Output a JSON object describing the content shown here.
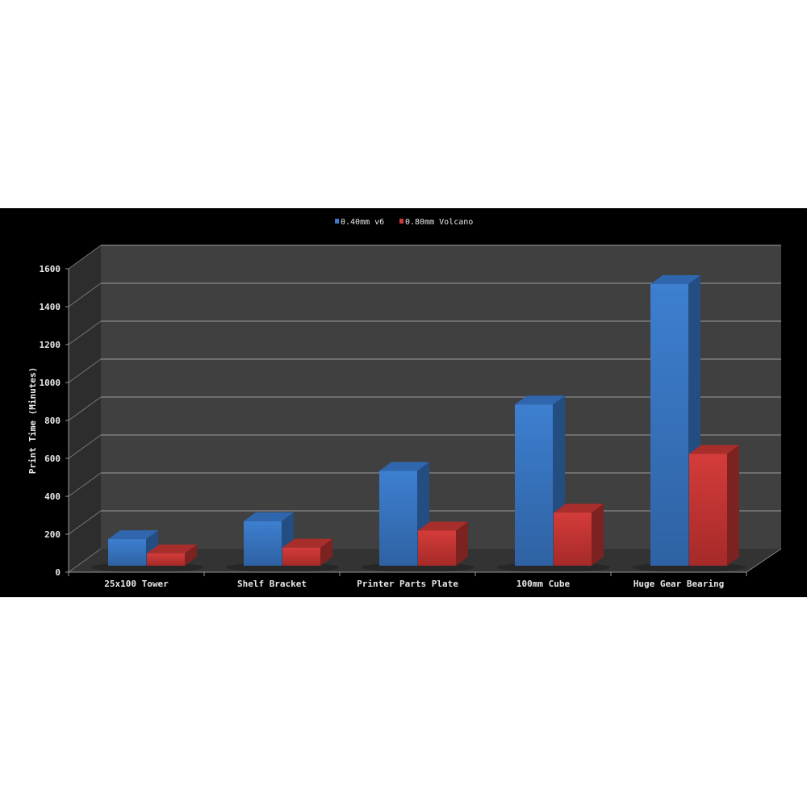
{
  "chart_data": {
    "type": "bar",
    "style": "3d-clustered",
    "title": "",
    "xlabel": "",
    "ylabel": "Print Time (Minutes)",
    "ylim": [
      0,
      1600
    ],
    "yticks": [
      0,
      200,
      400,
      600,
      800,
      1000,
      1200,
      1400,
      1600
    ],
    "grid": true,
    "legend_position": "top",
    "categories": [
      "25x100 Tower",
      "Shelf Bracket",
      "Printer Parts Plate",
      "100mm Cube",
      "Huge Gear Bearing"
    ],
    "series": [
      {
        "name": "0.40mm v6",
        "color": "#3a7bcc",
        "values": [
          140,
          235,
          500,
          850,
          1485
        ]
      },
      {
        "name": "0.80mm Volcano",
        "color": "#cc3a3a",
        "values": [
          65,
          95,
          185,
          280,
          590
        ]
      }
    ]
  }
}
